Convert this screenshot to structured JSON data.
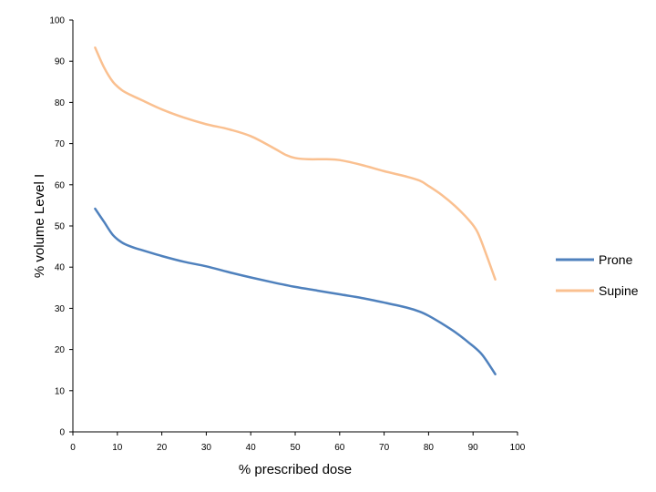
{
  "chart_data": {
    "type": "line",
    "title": "",
    "xlabel": "% prescribed dose",
    "ylabel": "% volume Level I",
    "xlim": [
      0,
      100
    ],
    "ylim": [
      0,
      100
    ],
    "x_ticks": [
      0,
      10,
      20,
      30,
      40,
      50,
      60,
      70,
      80,
      90,
      100
    ],
    "y_ticks": [
      0,
      10,
      20,
      30,
      40,
      50,
      60,
      70,
      80,
      90,
      100
    ],
    "grid": false,
    "legend_position": "right",
    "series": [
      {
        "name": "Prone",
        "color": "#4f81bd",
        "points": [
          [
            5,
            54.2
          ],
          [
            7,
            51
          ],
          [
            9,
            47.8
          ],
          [
            11,
            46
          ],
          [
            13,
            45
          ],
          [
            15,
            44.3
          ],
          [
            20,
            42.7
          ],
          [
            25,
            41.3
          ],
          [
            30,
            40.2
          ],
          [
            35,
            38.8
          ],
          [
            40,
            37.5
          ],
          [
            45,
            36.3
          ],
          [
            50,
            35.2
          ],
          [
            55,
            34.3
          ],
          [
            60,
            33.4
          ],
          [
            65,
            32.5
          ],
          [
            70,
            31.4
          ],
          [
            75,
            30.2
          ],
          [
            78,
            29.2
          ],
          [
            80,
            28.2
          ],
          [
            83,
            26.3
          ],
          [
            86,
            24.2
          ],
          [
            89,
            21.7
          ],
          [
            92,
            18.8
          ],
          [
            95,
            14
          ]
        ]
      },
      {
        "name": "Supine",
        "color": "#fac090",
        "points": [
          [
            5,
            93.3
          ],
          [
            7,
            88.5
          ],
          [
            9,
            85
          ],
          [
            11,
            83
          ],
          [
            13,
            81.8
          ],
          [
            15,
            80.8
          ],
          [
            20,
            78.3
          ],
          [
            25,
            76.3
          ],
          [
            30,
            74.7
          ],
          [
            35,
            73.5
          ],
          [
            40,
            71.8
          ],
          [
            45,
            69
          ],
          [
            48,
            67.2
          ],
          [
            50,
            66.5
          ],
          [
            53,
            66.2
          ],
          [
            57,
            66.2
          ],
          [
            60,
            66
          ],
          [
            65,
            64.8
          ],
          [
            70,
            63.3
          ],
          [
            75,
            62
          ],
          [
            78,
            61
          ],
          [
            80,
            59.7
          ],
          [
            83,
            57.5
          ],
          [
            86,
            54.8
          ],
          [
            89,
            51.5
          ],
          [
            91,
            48.5
          ],
          [
            93,
            43
          ],
          [
            95,
            37
          ]
        ]
      }
    ]
  }
}
